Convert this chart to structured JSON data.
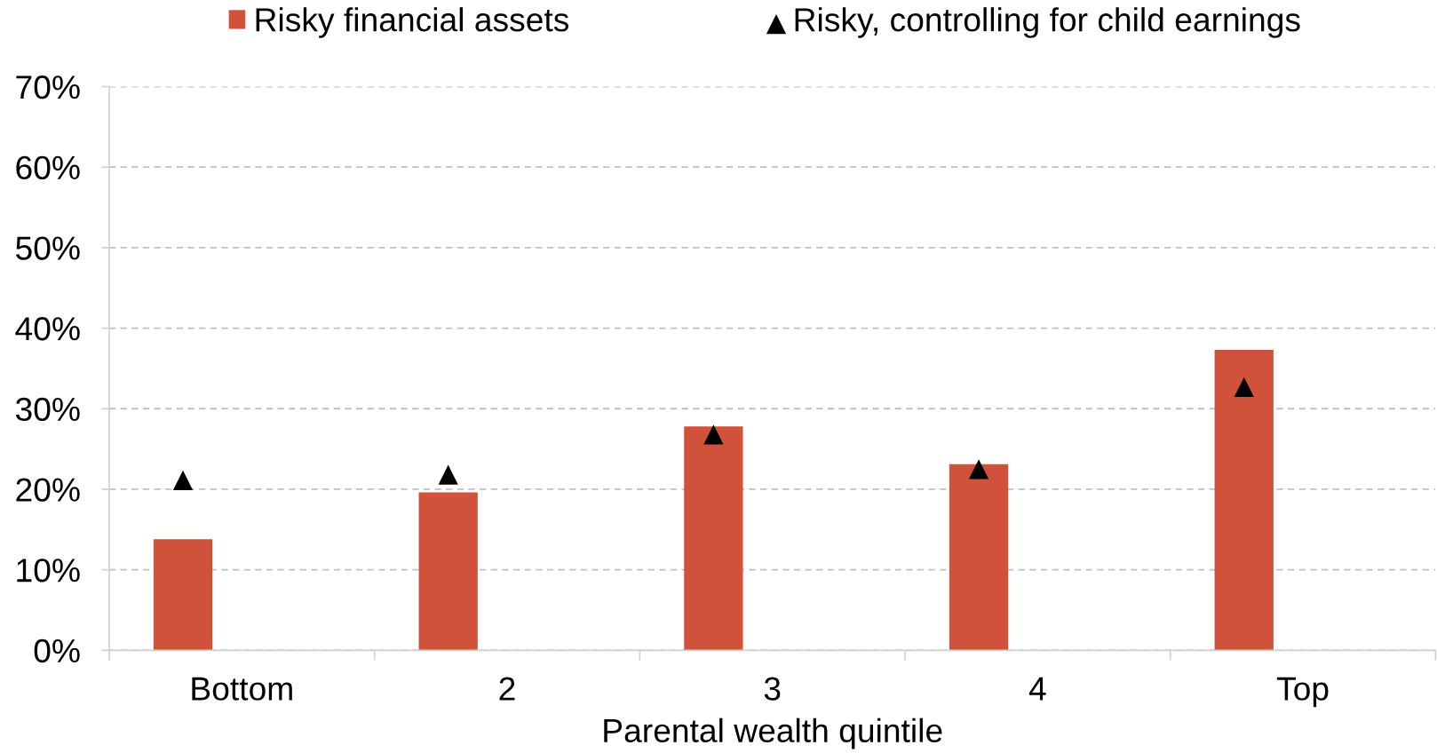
{
  "chart_data": {
    "type": "bar",
    "categories": [
      "Bottom",
      "2",
      "3",
      "4",
      "Top"
    ],
    "xlabel": "Parental wealth quintile",
    "series": [
      {
        "name": "Risky financial assets",
        "color": "#d0523a",
        "values": [
          13.8,
          19.6,
          27.8,
          23.1,
          37.3
        ]
      },
      {
        "name": "Risky, controlling for child earnings",
        "type": "scatter",
        "marker": "triangle",
        "color": "#000000",
        "values": [
          21.1,
          21.8,
          26.8,
          22.5,
          32.7
        ]
      }
    ],
    "ylim": [
      0,
      70
    ],
    "yticks": [
      {
        "value": 0,
        "label": "0%"
      },
      {
        "value": 10,
        "label": "10%"
      },
      {
        "value": 20,
        "label": "20%"
      },
      {
        "value": 30,
        "label": "30%"
      },
      {
        "value": 40,
        "label": "40%"
      },
      {
        "value": 50,
        "label": "50%"
      },
      {
        "value": 60,
        "label": "60%"
      },
      {
        "value": 70,
        "label": "70%"
      }
    ],
    "grid": "y",
    "legend": "top"
  }
}
